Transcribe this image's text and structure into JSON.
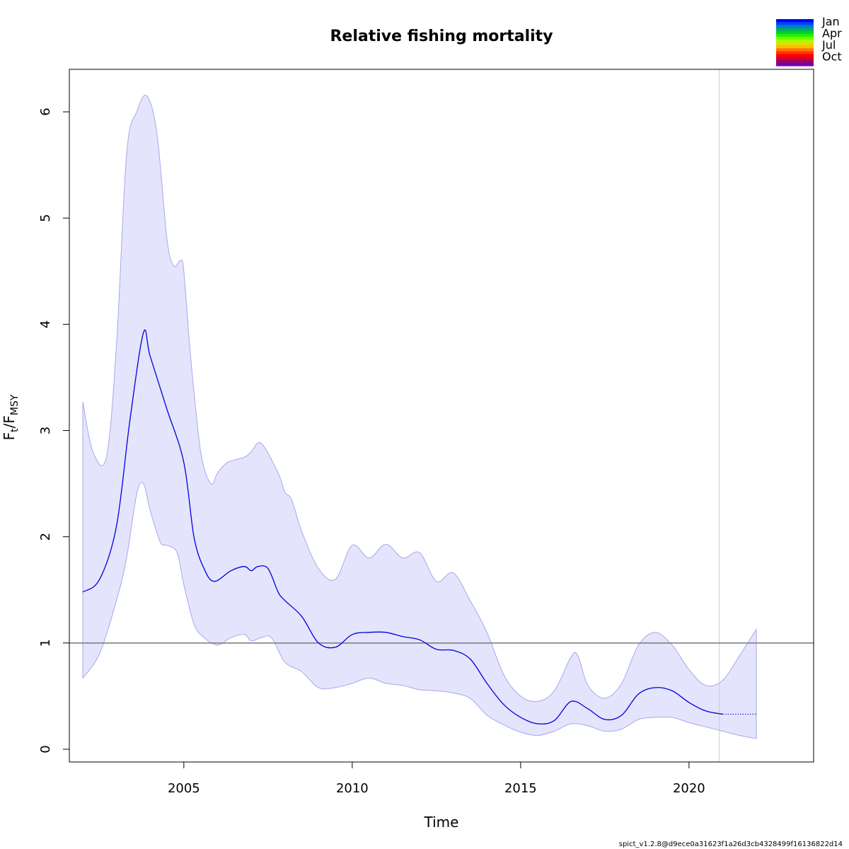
{
  "chart_data": {
    "type": "line",
    "title": "Relative fishing mortality",
    "xlabel": "Time",
    "ylabel_main": "F",
    "ylabel_sub1": "t",
    "ylabel_sep": "/F",
    "ylabel_sub2": "MSY",
    "xlim": [
      2001.6,
      2023.7
    ],
    "ylim": [
      -0.12,
      6.4
    ],
    "x_ticks": [
      2005,
      2010,
      2015,
      2020
    ],
    "y_ticks": [
      0,
      1,
      2,
      3,
      4,
      5,
      6
    ],
    "reference_line_y": 1,
    "vertical_line_x": 2020.9,
    "colors": {
      "line": "#0000dd",
      "band_fill": "#e4e4fc",
      "band_edge": "#a8a8ec",
      "reference": "#777777",
      "vertical": "#cccccc"
    },
    "series": [
      {
        "role": "estimate",
        "x": [
          2002.0,
          2002.5,
          2003.0,
          2003.4,
          2003.8,
          2004.0,
          2004.5,
          2005.0,
          2005.3,
          2005.6,
          2005.9,
          2006.4,
          2006.8,
          2007.0,
          2007.2,
          2007.5,
          2007.8,
          2008.0,
          2008.5,
          2009.0,
          2009.5,
          2010.0,
          2010.5,
          2011.0,
          2011.5,
          2012.0,
          2012.5,
          2013.0,
          2013.5,
          2014.0,
          2014.5,
          2015.0,
          2015.5,
          2016.0,
          2016.5,
          2017.0,
          2017.5,
          2018.0,
          2018.5,
          2019.0,
          2019.5,
          2020.0,
          2020.5,
          2021.0
        ],
        "y": [
          1.48,
          1.6,
          2.1,
          3.1,
          3.92,
          3.7,
          3.2,
          2.7,
          2.0,
          1.7,
          1.58,
          1.68,
          1.72,
          1.68,
          1.72,
          1.7,
          1.48,
          1.4,
          1.25,
          1.0,
          0.96,
          1.08,
          1.1,
          1.1,
          1.06,
          1.03,
          0.94,
          0.93,
          0.85,
          0.62,
          0.42,
          0.3,
          0.24,
          0.27,
          0.45,
          0.38,
          0.28,
          0.32,
          0.52,
          0.58,
          0.55,
          0.44,
          0.36,
          0.33
        ]
      },
      {
        "role": "forecast",
        "x": [
          2021.0,
          2022.0
        ],
        "y": [
          0.33,
          0.33
        ]
      },
      {
        "role": "upper",
        "x": [
          2002.0,
          2002.3,
          2002.7,
          2003.0,
          2003.3,
          2003.6,
          2003.9,
          2004.2,
          2004.5,
          2004.7,
          2004.9,
          2005.0,
          2005.2,
          2005.5,
          2005.8,
          2006.0,
          2006.3,
          2006.8,
          2007.0,
          2007.3,
          2007.8,
          2008.0,
          2008.2,
          2008.5,
          2009.0,
          2009.5,
          2010.0,
          2010.5,
          2011.0,
          2011.5,
          2012.0,
          2012.5,
          2013.0,
          2013.5,
          2014.0,
          2014.5,
          2015.0,
          2015.5,
          2016.0,
          2016.5,
          2016.7,
          2017.0,
          2017.5,
          2018.0,
          2018.5,
          2019.0,
          2019.5,
          2020.0,
          2020.5,
          2021.0,
          2021.5,
          2022.0
        ],
        "y": [
          3.27,
          2.8,
          2.75,
          3.8,
          5.6,
          6.0,
          6.15,
          5.8,
          4.8,
          4.55,
          4.6,
          4.5,
          3.7,
          2.8,
          2.5,
          2.6,
          2.7,
          2.75,
          2.8,
          2.88,
          2.6,
          2.42,
          2.35,
          2.05,
          1.7,
          1.6,
          1.92,
          1.8,
          1.93,
          1.8,
          1.85,
          1.58,
          1.66,
          1.4,
          1.1,
          0.7,
          0.5,
          0.45,
          0.55,
          0.87,
          0.88,
          0.6,
          0.48,
          0.62,
          0.98,
          1.1,
          0.98,
          0.75,
          0.6,
          0.65,
          0.88,
          1.13
        ]
      },
      {
        "role": "lower",
        "x": [
          2002.0,
          2002.5,
          2003.0,
          2003.3,
          2003.6,
          2003.8,
          2004.0,
          2004.3,
          2004.5,
          2004.8,
          2005.0,
          2005.3,
          2005.6,
          2006.0,
          2006.4,
          2006.8,
          2007.0,
          2007.3,
          2007.6,
          2008.0,
          2008.5,
          2009.0,
          2009.5,
          2010.0,
          2010.5,
          2011.0,
          2011.5,
          2012.0,
          2012.5,
          2013.0,
          2013.5,
          2014.0,
          2014.5,
          2015.0,
          2015.5,
          2016.0,
          2016.5,
          2017.0,
          2017.5,
          2018.0,
          2018.5,
          2019.0,
          2019.5,
          2020.0,
          2020.5,
          2021.0,
          2021.5,
          2022.0
        ],
        "y": [
          0.67,
          0.9,
          1.4,
          1.8,
          2.4,
          2.5,
          2.25,
          1.95,
          1.92,
          1.85,
          1.55,
          1.18,
          1.05,
          0.98,
          1.05,
          1.08,
          1.02,
          1.05,
          1.05,
          0.82,
          0.73,
          0.58,
          0.58,
          0.62,
          0.67,
          0.62,
          0.6,
          0.56,
          0.55,
          0.53,
          0.48,
          0.32,
          0.23,
          0.16,
          0.13,
          0.17,
          0.24,
          0.22,
          0.17,
          0.19,
          0.28,
          0.3,
          0.3,
          0.25,
          0.21,
          0.17,
          0.13,
          0.1
        ]
      }
    ],
    "legend": {
      "position": "top-right",
      "labels": [
        "Jan",
        "Apr",
        "Jul",
        "Oct"
      ],
      "colors": [
        "#0000ff",
        "#0044ff",
        "#0080c0",
        "#00a870",
        "#00cc33",
        "#22ee00",
        "#66ff00",
        "#aaff00",
        "#dddd00",
        "#ffbb00",
        "#ff7700",
        "#ff3300",
        "#ff0000",
        "#cc0033",
        "#990066",
        "#7700aa"
      ]
    }
  },
  "footer_text": "spict_v1.2.8@d9ece0a31623f1a26d3cb4328499f16136822d14"
}
